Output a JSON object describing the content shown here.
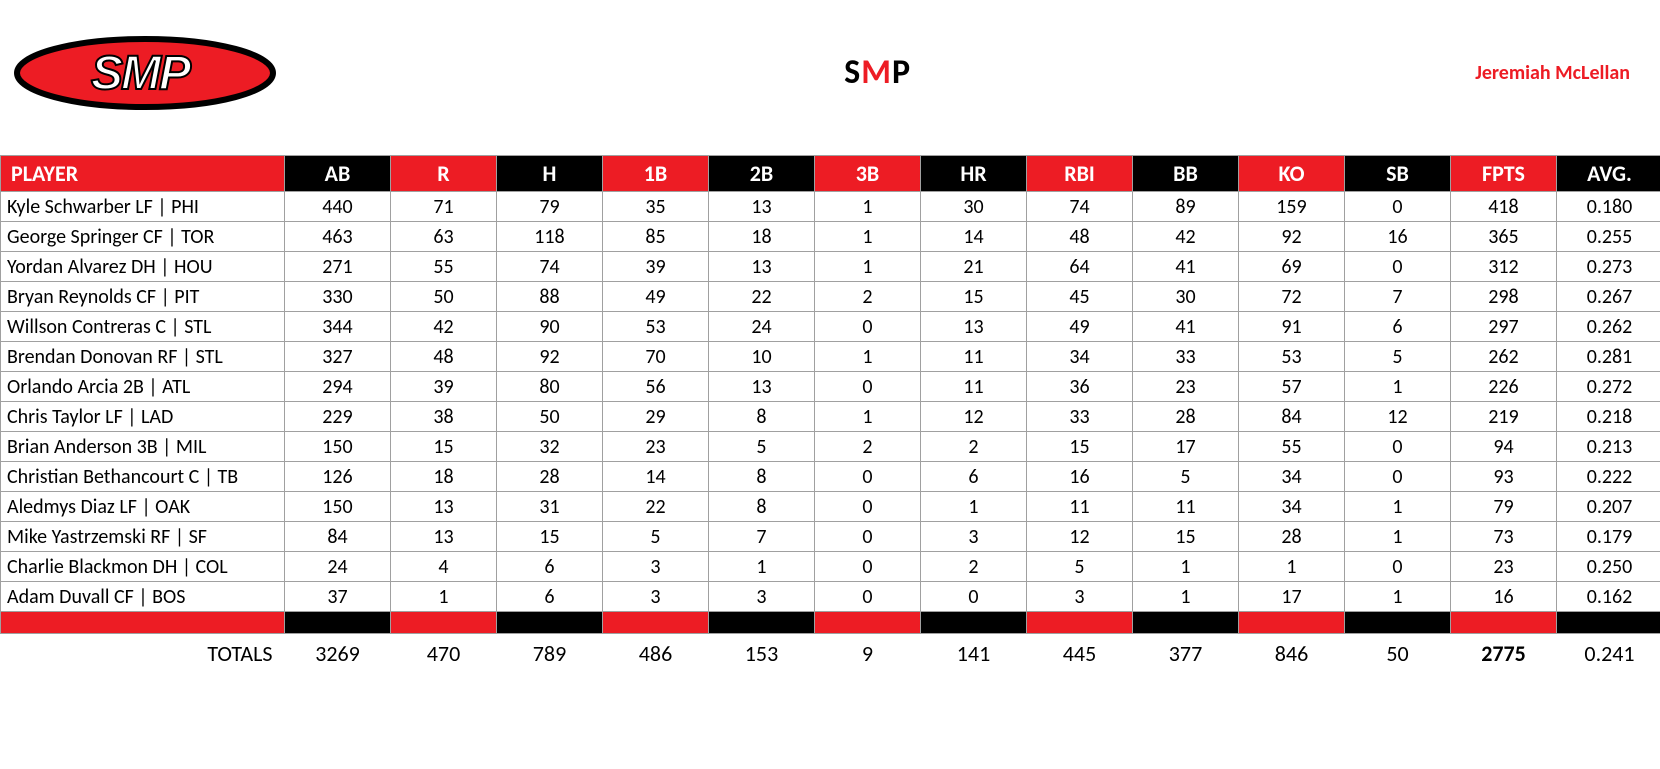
{
  "header": {
    "team_name_parts": {
      "left": "S",
      "mid": "M",
      "right": "P"
    },
    "manager": "Jeremiah McLellan",
    "logo": {
      "oval_fill": "#ed1c24",
      "oval_stroke": "#000000",
      "text": "SMP",
      "text_fill": "#ffffff",
      "text_stroke": "#000000",
      "text_fontweight": "900",
      "text_fontstyle": "italic"
    }
  },
  "styling": {
    "header_bg_red": "#ed1c24",
    "header_bg_black": "#000000",
    "header_text": "#ffffff",
    "row_text": "#000000",
    "grid_color": "#a0a0a0",
    "header_fontsize": 22,
    "cell_fontsize": 20,
    "totals_fontsize": 22,
    "header_pattern": [
      "red",
      "black",
      "red",
      "black",
      "red",
      "black",
      "red",
      "black",
      "red",
      "black",
      "red",
      "black",
      "red",
      "black"
    ]
  },
  "table": {
    "columns": [
      {
        "label": "PLAYER",
        "align": "left"
      },
      {
        "label": "AB",
        "align": "center"
      },
      {
        "label": "R",
        "align": "center"
      },
      {
        "label": "H",
        "align": "center"
      },
      {
        "label": "1B",
        "align": "center"
      },
      {
        "label": "2B",
        "align": "center"
      },
      {
        "label": "3B",
        "align": "center"
      },
      {
        "label": "HR",
        "align": "center"
      },
      {
        "label": "RBI",
        "align": "center"
      },
      {
        "label": "BB",
        "align": "center"
      },
      {
        "label": "KO",
        "align": "center"
      },
      {
        "label": "SB",
        "align": "center"
      },
      {
        "label": "FPTS",
        "align": "center"
      },
      {
        "label": "AVG.",
        "align": "center"
      }
    ],
    "rows": [
      [
        "Kyle Schwarber LF | PHI",
        "440",
        "71",
        "79",
        "35",
        "13",
        "1",
        "30",
        "74",
        "89",
        "159",
        "0",
        "418",
        "0.180"
      ],
      [
        "George Springer CF | TOR",
        "463",
        "63",
        "118",
        "85",
        "18",
        "1",
        "14",
        "48",
        "42",
        "92",
        "16",
        "365",
        "0.255"
      ],
      [
        "Yordan Alvarez DH | HOU",
        "271",
        "55",
        "74",
        "39",
        "13",
        "1",
        "21",
        "64",
        "41",
        "69",
        "0",
        "312",
        "0.273"
      ],
      [
        "Bryan Reynolds CF | PIT",
        "330",
        "50",
        "88",
        "49",
        "22",
        "2",
        "15",
        "45",
        "30",
        "72",
        "7",
        "298",
        "0.267"
      ],
      [
        "Willson Contreras C | STL",
        "344",
        "42",
        "90",
        "53",
        "24",
        "0",
        "13",
        "49",
        "41",
        "91",
        "6",
        "297",
        "0.262"
      ],
      [
        "Brendan Donovan RF | STL",
        "327",
        "48",
        "92",
        "70",
        "10",
        "1",
        "11",
        "34",
        "33",
        "53",
        "5",
        "262",
        "0.281"
      ],
      [
        "Orlando Arcia 2B | ATL",
        "294",
        "39",
        "80",
        "56",
        "13",
        "0",
        "11",
        "36",
        "23",
        "57",
        "1",
        "226",
        "0.272"
      ],
      [
        "Chris Taylor LF | LAD",
        "229",
        "38",
        "50",
        "29",
        "8",
        "1",
        "12",
        "33",
        "28",
        "84",
        "12",
        "219",
        "0.218"
      ],
      [
        "Brian Anderson 3B | MIL",
        "150",
        "15",
        "32",
        "23",
        "5",
        "2",
        "2",
        "15",
        "17",
        "55",
        "0",
        "94",
        "0.213"
      ],
      [
        "Christian Bethancourt C | TB",
        "126",
        "18",
        "28",
        "14",
        "8",
        "0",
        "6",
        "16",
        "5",
        "34",
        "0",
        "93",
        "0.222"
      ],
      [
        "Aledmys Diaz LF | OAK",
        "150",
        "13",
        "31",
        "22",
        "8",
        "0",
        "1",
        "11",
        "11",
        "34",
        "1",
        "79",
        "0.207"
      ],
      [
        "Mike Yastrzemski RF | SF",
        "84",
        "13",
        "15",
        "5",
        "7",
        "0",
        "3",
        "12",
        "15",
        "28",
        "1",
        "73",
        "0.179"
      ],
      [
        "Charlie Blackmon DH | COL",
        "24",
        "4",
        "6",
        "3",
        "1",
        "0",
        "2",
        "5",
        "1",
        "1",
        "0",
        "23",
        "0.250"
      ],
      [
        "Adam Duvall CF | BOS",
        "37",
        "1",
        "6",
        "3",
        "3",
        "0",
        "0",
        "3",
        "1",
        "17",
        "1",
        "16",
        "0.162"
      ]
    ],
    "totals": {
      "label": "TOTALS",
      "values": [
        "3269",
        "470",
        "789",
        "486",
        "153",
        "9",
        "141",
        "445",
        "377",
        "846",
        "50",
        "2775",
        "0.241"
      ]
    }
  }
}
